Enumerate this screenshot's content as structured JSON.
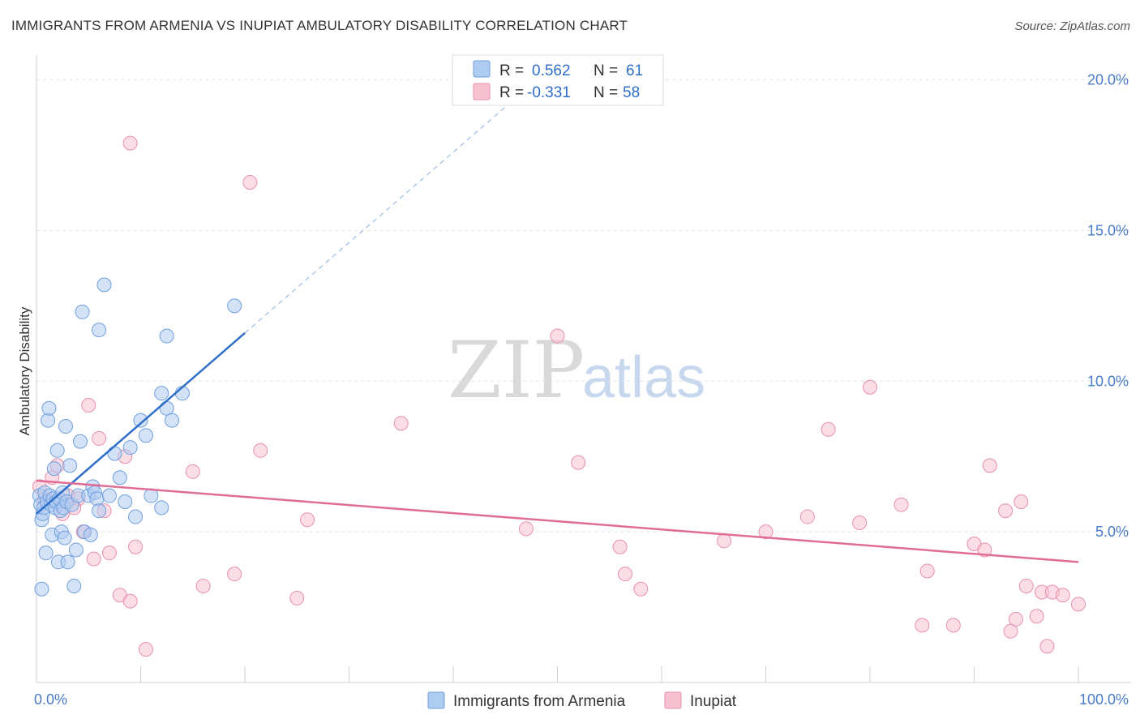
{
  "title": "IMMIGRANTS FROM ARMENIA VS INUPIAT AMBULATORY DISABILITY CORRELATION CHART",
  "source": "Source: ZipAtlas.com",
  "watermark": {
    "zip": "ZIP",
    "atlas": "atlas"
  },
  "legend": {
    "r_label": "R =",
    "n_label": "N =",
    "rows": [
      {
        "r": "0.562",
        "n": "61"
      },
      {
        "r": "-0.331",
        "n": "58"
      }
    ]
  },
  "colors": {
    "blue_fill": "#aecbf0",
    "blue_stroke": "#6f9fdd",
    "blue_line": "#2f6ec9",
    "pink_fill": "#f7c1d1",
    "pink_stroke": "#e88fac",
    "pink_line": "#e06c98"
  },
  "chart_data": {
    "type": "scatter",
    "title": "IMMIGRANTS FROM ARMENIA VS INUPIAT AMBULATORY DISABILITY CORRELATION CHART",
    "xlabel": "",
    "ylabel": "Ambulatory Disability",
    "xlim": [
      0,
      100
    ],
    "ylim": [
      0,
      20.5
    ],
    "x_tick_labels": [
      "0.0%",
      "100.0%"
    ],
    "y_ticks": [
      5,
      10,
      15,
      20
    ],
    "y_tick_labels": [
      "5.0%",
      "10.0%",
      "15.0%",
      "20.0%"
    ],
    "grid": true,
    "legend_position": "top-center",
    "series": [
      {
        "name": "Immigrants from Armenia",
        "r": 0.562,
        "n": 61,
        "trend": {
          "x0": 0,
          "y0": 5.6,
          "x1": 20,
          "y1": 11.6,
          "dashed_to_x": 45
        },
        "points": [
          [
            0.3,
            6.2
          ],
          [
            0.4,
            5.9
          ],
          [
            0.5,
            5.4
          ],
          [
            0.6,
            5.6
          ],
          [
            0.7,
            5.8
          ],
          [
            0.8,
            6.3
          ],
          [
            0.9,
            4.3
          ],
          [
            1.0,
            6.0
          ],
          [
            1.1,
            8.7
          ],
          [
            1.2,
            9.1
          ],
          [
            1.3,
            6.2
          ],
          [
            1.4,
            5.9
          ],
          [
            1.5,
            4.9
          ],
          [
            1.6,
            6.1
          ],
          [
            1.7,
            7.1
          ],
          [
            1.8,
            5.8
          ],
          [
            1.9,
            6.0
          ],
          [
            2.0,
            7.7
          ],
          [
            2.1,
            4.0
          ],
          [
            2.2,
            6.1
          ],
          [
            2.3,
            5.7
          ],
          [
            2.4,
            5.0
          ],
          [
            2.5,
            6.3
          ],
          [
            2.6,
            5.8
          ],
          [
            2.7,
            4.8
          ],
          [
            2.8,
            8.5
          ],
          [
            2.9,
            6.0
          ],
          [
            3.0,
            4.0
          ],
          [
            3.2,
            7.2
          ],
          [
            3.4,
            5.9
          ],
          [
            3.6,
            3.2
          ],
          [
            3.8,
            4.4
          ],
          [
            4.0,
            6.2
          ],
          [
            4.2,
            8.0
          ],
          [
            4.4,
            12.3
          ],
          [
            4.6,
            5.0
          ],
          [
            5.0,
            6.2
          ],
          [
            5.2,
            4.9
          ],
          [
            5.4,
            6.5
          ],
          [
            5.6,
            6.3
          ],
          [
            5.8,
            6.1
          ],
          [
            6.0,
            5.7
          ],
          [
            6.5,
            13.2
          ],
          [
            6.0,
            11.7
          ],
          [
            7.0,
            6.2
          ],
          [
            7.5,
            7.6
          ],
          [
            8.0,
            6.8
          ],
          [
            8.5,
            6.0
          ],
          [
            9.0,
            7.8
          ],
          [
            9.5,
            5.5
          ],
          [
            10.0,
            8.7
          ],
          [
            10.5,
            8.2
          ],
          [
            11.0,
            6.2
          ],
          [
            12.0,
            5.8
          ],
          [
            12.5,
            11.5
          ],
          [
            12.0,
            9.6
          ],
          [
            12.5,
            9.1
          ],
          [
            13.0,
            8.7
          ],
          [
            14.0,
            9.6
          ],
          [
            19.0,
            12.5
          ],
          [
            0.5,
            3.1
          ]
        ]
      },
      {
        "name": "Inupiat",
        "r": -0.331,
        "n": 58,
        "trend": {
          "x0": 0,
          "y0": 6.7,
          "x1": 100,
          "y1": 4.0
        },
        "points": [
          [
            0.3,
            6.5
          ],
          [
            0.8,
            6.1
          ],
          [
            1.5,
            6.8
          ],
          [
            2.0,
            7.2
          ],
          [
            2.5,
            5.6
          ],
          [
            3.0,
            6.2
          ],
          [
            4.0,
            6.1
          ],
          [
            4.5,
            5.0
          ],
          [
            5.0,
            9.2
          ],
          [
            5.5,
            4.1
          ],
          [
            6.0,
            8.1
          ],
          [
            6.5,
            5.7
          ],
          [
            7.0,
            4.3
          ],
          [
            8.0,
            2.9
          ],
          [
            8.5,
            7.5
          ],
          [
            9.0,
            2.7
          ],
          [
            9.0,
            17.9
          ],
          [
            9.5,
            4.5
          ],
          [
            10.5,
            1.1
          ],
          [
            15.0,
            7.0
          ],
          [
            16.0,
            3.2
          ],
          [
            19.0,
            3.6
          ],
          [
            20.5,
            16.6
          ],
          [
            21.5,
            7.7
          ],
          [
            25.0,
            2.8
          ],
          [
            26.0,
            5.4
          ],
          [
            35.0,
            8.6
          ],
          [
            47.0,
            5.1
          ],
          [
            50.0,
            11.5
          ],
          [
            52.0,
            7.3
          ],
          [
            56.0,
            4.5
          ],
          [
            56.5,
            3.6
          ],
          [
            58.0,
            3.1
          ],
          [
            66.0,
            4.7
          ],
          [
            70.0,
            5.0
          ],
          [
            74.0,
            5.5
          ],
          [
            76.0,
            8.4
          ],
          [
            79.0,
            5.3
          ],
          [
            80.0,
            9.8
          ],
          [
            83.0,
            5.9
          ],
          [
            85.0,
            1.9
          ],
          [
            85.5,
            3.7
          ],
          [
            88.0,
            1.9
          ],
          [
            90.0,
            4.6
          ],
          [
            91.0,
            4.4
          ],
          [
            91.5,
            7.2
          ],
          [
            93.0,
            5.7
          ],
          [
            93.5,
            1.7
          ],
          [
            94.0,
            2.1
          ],
          [
            94.5,
            6.0
          ],
          [
            95.0,
            3.2
          ],
          [
            96.0,
            2.2
          ],
          [
            96.5,
            3.0
          ],
          [
            97.0,
            1.2
          ],
          [
            97.5,
            3.0
          ],
          [
            98.5,
            2.9
          ],
          [
            100.0,
            2.6
          ],
          [
            3.6,
            5.8
          ]
        ]
      }
    ]
  }
}
